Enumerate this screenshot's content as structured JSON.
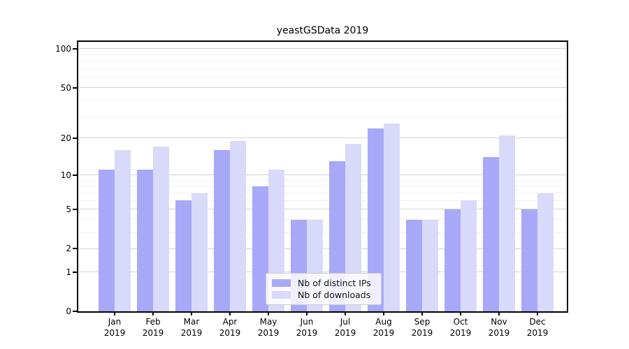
{
  "chart_data": {
    "type": "bar",
    "title": "yeastGSData 2019",
    "categories": [
      "Jan",
      "Feb",
      "Mar",
      "Apr",
      "May",
      "Jun",
      "Jul",
      "Aug",
      "Sep",
      "Oct",
      "Nov",
      "Dec"
    ],
    "category_year": "2019",
    "series": [
      {
        "name": "Nb of distinct IPs",
        "color": "#a8a8f8",
        "values": [
          11,
          11,
          6,
          16,
          8,
          4,
          13,
          24,
          4,
          5,
          14,
          5
        ]
      },
      {
        "name": "Nb of downloads",
        "color": "#d9d9fa",
        "values": [
          16,
          17,
          7,
          19,
          11,
          4,
          18,
          26,
          4,
          6,
          21,
          7
        ]
      }
    ],
    "yscale": "log1p",
    "ylim": [
      0,
      113
    ],
    "yticks": [
      0,
      1,
      2,
      5,
      10,
      20,
      50,
      100
    ],
    "yticks_minor": [
      3,
      4,
      6,
      7,
      8,
      9,
      30,
      40,
      60,
      70,
      80,
      90
    ],
    "grid": "horizontal",
    "legend_position": "inside-bottom-center"
  }
}
